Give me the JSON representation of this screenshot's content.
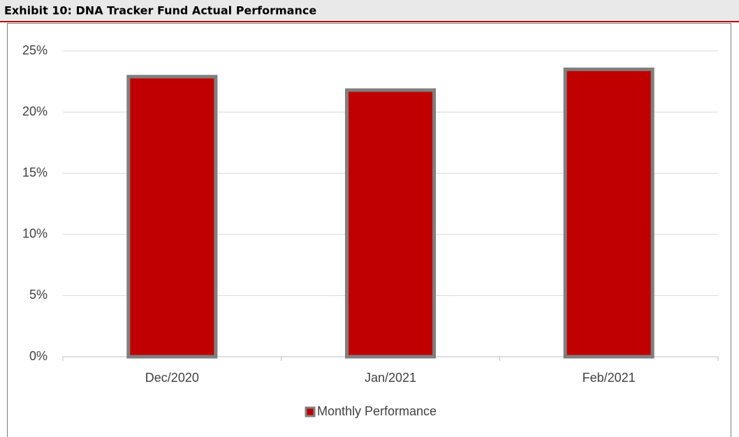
{
  "chart_data": {
    "type": "bar",
    "title": "Exhibit 10: DNA Tracker Fund Actual Performance",
    "categories": [
      "Dec/2020",
      "Jan/2021",
      "Feb/2021"
    ],
    "series": [
      {
        "name": "Monthly Performance",
        "color": "#c00000",
        "edgecolor": "#7f7f7f",
        "values": [
          22.9,
          21.8,
          23.5
        ]
      }
    ],
    "ylim": [
      0,
      25
    ],
    "yticks": [
      {
        "value": 0,
        "label": "0%"
      },
      {
        "value": 5,
        "label": "5%"
      },
      {
        "value": 10,
        "label": "10%"
      },
      {
        "value": 15,
        "label": "15%"
      },
      {
        "value": 20,
        "label": "20%"
      },
      {
        "value": 25,
        "label": "25%"
      }
    ],
    "grid": true,
    "legend": "bottom"
  }
}
